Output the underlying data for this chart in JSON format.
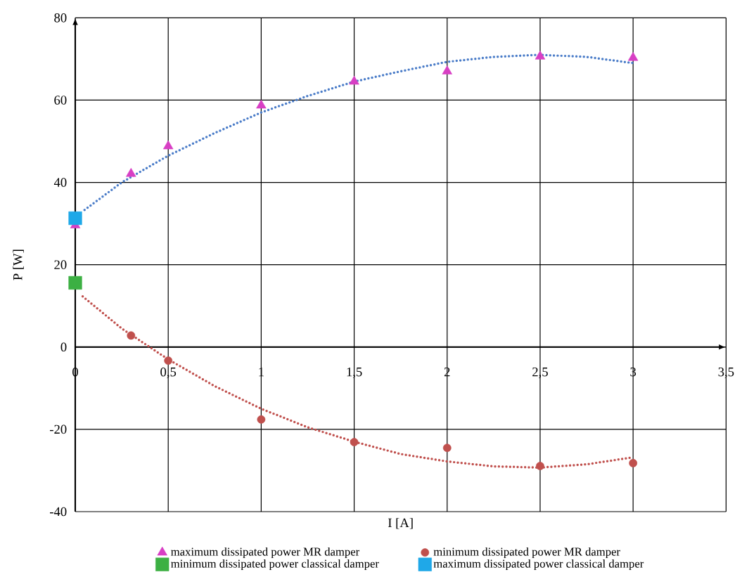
{
  "chart_data": {
    "type": "scatter",
    "xlabel": "I [A]",
    "ylabel": "P [W]",
    "xlim": [
      0,
      3.5
    ],
    "ylim": [
      -40,
      80
    ],
    "xticks": [
      0,
      {
        "value": 0.5,
        "label": "0,5"
      },
      1,
      {
        "value": 1.5,
        "label": "1,5"
      },
      2,
      {
        "value": 2.5,
        "label": "2,5"
      },
      3,
      {
        "value": 3.5,
        "label": "3,5"
      }
    ],
    "yticks": [
      -40,
      -20,
      0,
      20,
      40,
      60,
      80
    ],
    "grid": true,
    "legend": "bottom",
    "series": [
      {
        "name": "maximum dissipated power MR damper",
        "color": "#d83fc4",
        "marker": "triangle",
        "x": [
          0,
          0.3,
          0.5,
          1,
          1.5,
          2,
          2.5,
          3
        ],
        "values": [
          29.6,
          42.1,
          48.8,
          58.7,
          64.5,
          67,
          70.6,
          70.3
        ]
      },
      {
        "name": "minimum dissipated power MR damper",
        "color": "#c0504d",
        "marker": "circle",
        "x": [
          0.3,
          0.5,
          1,
          1.5,
          2,
          2.5,
          3
        ],
        "values": [
          2.8,
          -3.3,
          -17.6,
          -23.1,
          -24.5,
          -28.9,
          -28.2
        ]
      },
      {
        "name": "minimum dissipated power classical damper",
        "color": "#3cb043",
        "marker": "square",
        "x": [
          0
        ],
        "values": [
          15.6
        ]
      },
      {
        "name": "maximum dissipated power classical damper",
        "color": "#1fa8e8",
        "marker": "square",
        "x": [
          0
        ],
        "values": [
          31.3
        ]
      },
      {
        "type": "line",
        "color": "#4a7cc8",
        "marker": "none",
        "line_style": "dotted",
        "x": [
          0.05,
          0.25,
          0.5,
          0.75,
          1,
          1.25,
          1.5,
          1.75,
          2,
          2.25,
          2.5,
          2.75,
          3
        ],
        "values": [
          33.3,
          40,
          46.5,
          52,
          57,
          61,
          64.5,
          67,
          69.3,
          70.5,
          71,
          70.5,
          69
        ]
      },
      {
        "type": "line",
        "color": "#c0504d",
        "marker": "none",
        "line_style": "dotted",
        "x": [
          0.04,
          0.25,
          0.5,
          0.75,
          1,
          1.25,
          1.5,
          1.75,
          2,
          2.25,
          2.5,
          2.75,
          3
        ],
        "values": [
          12.3,
          4.5,
          -3,
          -9.5,
          -15,
          -19.5,
          -23,
          -26,
          -27.8,
          -29,
          -29.3,
          -28.5,
          -26.8
        ]
      }
    ]
  }
}
